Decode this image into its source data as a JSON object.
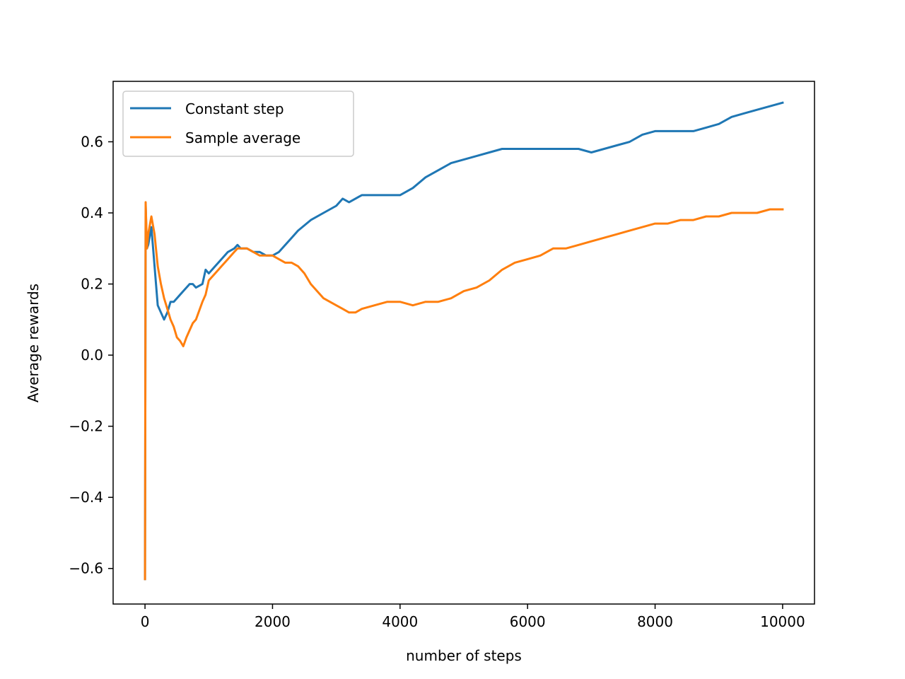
{
  "chart_data": {
    "type": "line",
    "title": "",
    "xlabel": "number of steps",
    "ylabel": "Average rewards",
    "xlim": [
      -500,
      10500
    ],
    "ylim": [
      -0.7,
      0.77
    ],
    "xticks": [
      0,
      2000,
      4000,
      6000,
      8000,
      10000
    ],
    "xtick_labels": [
      "0",
      "2000",
      "4000",
      "6000",
      "8000",
      "10000"
    ],
    "yticks": [
      -0.6,
      -0.4,
      -0.2,
      0.0,
      0.2,
      0.4,
      0.6
    ],
    "ytick_labels": [
      "−0.6",
      "−0.4",
      "−0.2",
      "0.0",
      "0.2",
      "0.4",
      "0.6"
    ],
    "grid": false,
    "legend_position": "upper-left",
    "series": [
      {
        "name": "Constant step",
        "color": "#1f77b4",
        "x": [
          0,
          10,
          30,
          50,
          100,
          150,
          200,
          250,
          300,
          350,
          400,
          450,
          500,
          600,
          650,
          700,
          750,
          800,
          900,
          950,
          1000,
          1100,
          1200,
          1300,
          1400,
          1450,
          1500,
          1600,
          1700,
          1800,
          1900,
          2000,
          2100,
          2200,
          2300,
          2400,
          2600,
          2800,
          3000,
          3100,
          3200,
          3400,
          3600,
          3800,
          4000,
          4200,
          4400,
          4600,
          4800,
          5000,
          5200,
          5400,
          5600,
          5800,
          6000,
          6200,
          6400,
          6600,
          6800,
          7000,
          7200,
          7400,
          7600,
          7800,
          8000,
          8200,
          8400,
          8600,
          8800,
          9000,
          9200,
          9400,
          9600,
          9800,
          10000
        ],
        "y": [
          -0.63,
          0.42,
          0.3,
          0.31,
          0.36,
          0.25,
          0.14,
          0.12,
          0.1,
          0.12,
          0.15,
          0.15,
          0.16,
          0.18,
          0.19,
          0.2,
          0.2,
          0.19,
          0.2,
          0.24,
          0.23,
          0.25,
          0.27,
          0.29,
          0.3,
          0.31,
          0.3,
          0.3,
          0.29,
          0.29,
          0.28,
          0.28,
          0.29,
          0.31,
          0.33,
          0.35,
          0.38,
          0.4,
          0.42,
          0.44,
          0.43,
          0.45,
          0.45,
          0.45,
          0.45,
          0.47,
          0.5,
          0.52,
          0.54,
          0.55,
          0.56,
          0.57,
          0.58,
          0.58,
          0.58,
          0.58,
          0.58,
          0.58,
          0.58,
          0.57,
          0.58,
          0.59,
          0.6,
          0.62,
          0.63,
          0.63,
          0.63,
          0.63,
          0.64,
          0.65,
          0.67,
          0.68,
          0.69,
          0.7,
          0.71
        ]
      },
      {
        "name": "Sample average",
        "color": "#ff7f0e",
        "x": [
          0,
          10,
          30,
          50,
          100,
          150,
          200,
          250,
          300,
          350,
          400,
          450,
          500,
          550,
          600,
          650,
          700,
          750,
          800,
          900,
          950,
          1000,
          1100,
          1200,
          1300,
          1400,
          1450,
          1500,
          1600,
          1700,
          1800,
          1900,
          2000,
          2100,
          2200,
          2300,
          2400,
          2500,
          2600,
          2800,
          3000,
          3100,
          3200,
          3300,
          3400,
          3600,
          3800,
          4000,
          4200,
          4400,
          4600,
          4800,
          5000,
          5200,
          5400,
          5600,
          5800,
          6000,
          6200,
          6400,
          6600,
          6800,
          7000,
          7200,
          7400,
          7600,
          7800,
          8000,
          8200,
          8400,
          8600,
          8800,
          9000,
          9200,
          9400,
          9600,
          9800,
          10000
        ],
        "y": [
          -0.63,
          0.43,
          0.3,
          0.34,
          0.39,
          0.34,
          0.25,
          0.2,
          0.16,
          0.13,
          0.1,
          0.08,
          0.05,
          0.04,
          0.025,
          0.05,
          0.07,
          0.09,
          0.1,
          0.15,
          0.17,
          0.21,
          0.23,
          0.25,
          0.27,
          0.29,
          0.3,
          0.3,
          0.3,
          0.29,
          0.28,
          0.28,
          0.28,
          0.27,
          0.26,
          0.26,
          0.25,
          0.23,
          0.2,
          0.16,
          0.14,
          0.13,
          0.12,
          0.12,
          0.13,
          0.14,
          0.15,
          0.15,
          0.14,
          0.15,
          0.15,
          0.16,
          0.18,
          0.19,
          0.21,
          0.24,
          0.26,
          0.27,
          0.28,
          0.3,
          0.3,
          0.31,
          0.32,
          0.33,
          0.34,
          0.35,
          0.36,
          0.37,
          0.37,
          0.38,
          0.38,
          0.39,
          0.39,
          0.4,
          0.4,
          0.4,
          0.41,
          0.41
        ]
      }
    ]
  }
}
